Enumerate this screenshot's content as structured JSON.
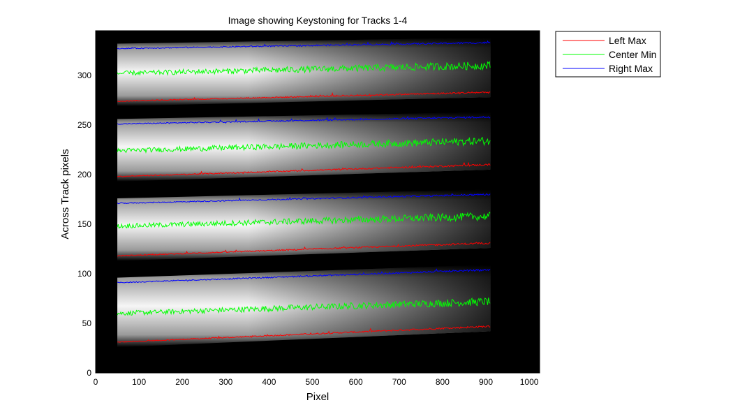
{
  "chart_data": {
    "type": "line",
    "title": "Image showing Keystoning for Tracks 1-4",
    "xlabel": "Pixel",
    "ylabel": "Across Track pixels",
    "xlim": [
      0,
      1024
    ],
    "ylim": [
      0,
      345
    ],
    "xticks": [
      0,
      100,
      200,
      300,
      400,
      500,
      600,
      700,
      800,
      900,
      1000
    ],
    "yticks": [
      0,
      50,
      100,
      150,
      200,
      250,
      300
    ],
    "grid": false,
    "legend_position": "top-right",
    "background": "grayscale image of four illuminated tracks",
    "x_range": [
      50,
      910
    ],
    "colors": {
      "Left Max": "#ff0000",
      "Center Min": "#00ff00",
      "Right Max": "#0000ff"
    },
    "series": [
      {
        "name": "Left Max",
        "track": 1,
        "x": [
          50,
          910
        ],
        "y": [
          31,
          47
        ]
      },
      {
        "name": "Center Min",
        "track": 1,
        "x": [
          50,
          910
        ],
        "y": [
          60,
          72
        ]
      },
      {
        "name": "Right Max",
        "track": 1,
        "x": [
          50,
          910
        ],
        "y": [
          91,
          104
        ]
      },
      {
        "name": "Left Max",
        "track": 2,
        "x": [
          50,
          910
        ],
        "y": [
          118,
          131
        ]
      },
      {
        "name": "Center Min",
        "track": 2,
        "x": [
          50,
          910
        ],
        "y": [
          148,
          158
        ]
      },
      {
        "name": "Right Max",
        "track": 2,
        "x": [
          50,
          910
        ],
        "y": [
          171,
          180
        ]
      },
      {
        "name": "Left Max",
        "track": 3,
        "x": [
          50,
          910
        ],
        "y": [
          198,
          210
        ]
      },
      {
        "name": "Center Min",
        "track": 3,
        "x": [
          50,
          910
        ],
        "y": [
          224,
          234
        ]
      },
      {
        "name": "Right Max",
        "track": 3,
        "x": [
          50,
          910
        ],
        "y": [
          251,
          258
        ]
      },
      {
        "name": "Left Max",
        "track": 4,
        "x": [
          50,
          910
        ],
        "y": [
          274,
          283
        ]
      },
      {
        "name": "Center Min",
        "track": 4,
        "x": [
          50,
          910
        ],
        "y": [
          302,
          310
        ]
      },
      {
        "name": "Right Max",
        "track": 4,
        "x": [
          50,
          910
        ],
        "y": [
          327,
          333
        ]
      }
    ],
    "legend": [
      "Left Max",
      "Center Min",
      "Right Max"
    ]
  }
}
